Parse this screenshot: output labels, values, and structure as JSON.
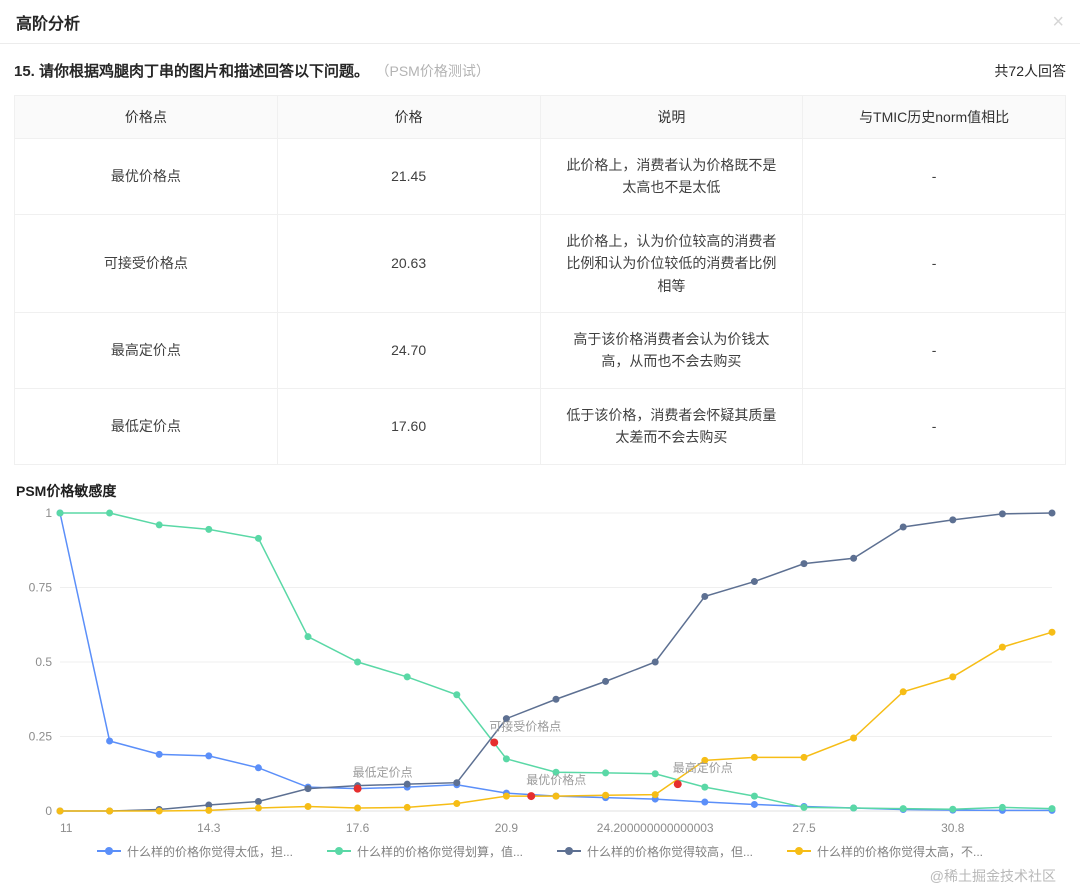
{
  "header": {
    "title": "高阶分析",
    "close_icon": "×"
  },
  "question": {
    "title": "15. 请你根据鸡腿肉丁串的图片和描述回答以下问题。",
    "subtitle": "（PSM价格测试）",
    "answer_count": "共72人回答"
  },
  "table": {
    "columns": [
      "价格点",
      "价格",
      "说明",
      "与TMIC历史norm值相比"
    ],
    "rows": [
      [
        "最优价格点",
        "21.45",
        "此价格上，消费者认为价格既不是太高也不是太低",
        "-"
      ],
      [
        "可接受价格点",
        "20.63",
        "此价格上，认为价位较高的消费者比例和认为价位较低的消费者比例相等",
        "-"
      ],
      [
        "最高定价点",
        "24.70",
        "高于该价格消费者会认为价钱太高，从而也不会去购买",
        "-"
      ],
      [
        "最低定价点",
        "17.60",
        "低于该价格，消费者会怀疑其质量太差而不会去购买",
        "-"
      ]
    ]
  },
  "chart": {
    "title": "PSM价格敏感度"
  },
  "chart_data": {
    "type": "line",
    "title": "PSM价格敏感度",
    "x": [
      11,
      12.1,
      13.2,
      14.3,
      15.4,
      16.5,
      17.6,
      18.7,
      19.8,
      20.9,
      22,
      23.1,
      24.2,
      25.3,
      26.4,
      27.5,
      28.6,
      29.7,
      30.8,
      31.9,
      33
    ],
    "x_tick_values": [
      11,
      14.3,
      17.6,
      20.9,
      24.2,
      27.5,
      30.8
    ],
    "x_tick_labels": [
      "11",
      "14.3",
      "17.6",
      "20.9",
      "24.200000000000003",
      "27.5",
      "30.8"
    ],
    "y_ticks": [
      0,
      0.25,
      0.5,
      0.75,
      1
    ],
    "ylim": [
      0,
      1
    ],
    "grid": "horizontal",
    "legend_position": "bottom",
    "series": [
      {
        "name": "什么样的价格你觉得太低，担...",
        "color": "#5B8FF9",
        "values": [
          1,
          0.235,
          0.19,
          0.185,
          0.145,
          0.08,
          0.075,
          0.08,
          0.088,
          0.06,
          0.05,
          0.045,
          0.04,
          0.03,
          0.022,
          0.015,
          0.01,
          0.005,
          0.003,
          0.002,
          0.002
        ]
      },
      {
        "name": "什么样的价格你觉得划算，值...",
        "color": "#5AD8A6",
        "values": [
          1,
          1,
          0.96,
          0.945,
          0.915,
          0.585,
          0.5,
          0.45,
          0.39,
          0.175,
          0.13,
          0.128,
          0.125,
          0.08,
          0.05,
          0.012,
          0.01,
          0.008,
          0.006,
          0.012,
          0.008
        ]
      },
      {
        "name": "什么样的价格你觉得较高，但...",
        "color": "#5D7092",
        "values": [
          0,
          0,
          0.005,
          0.02,
          0.032,
          0.075,
          0.085,
          0.09,
          0.095,
          0.31,
          0.375,
          0.435,
          0.5,
          0.72,
          0.77,
          0.83,
          0.848,
          0.953,
          0.977,
          0.997,
          1
        ]
      },
      {
        "name": "什么样的价格你觉得太高，不...",
        "color": "#F6BD16",
        "values": [
          0,
          0,
          0,
          0.002,
          0.01,
          0.015,
          0.01,
          0.012,
          0.025,
          0.05,
          0.05,
          0.053,
          0.055,
          0.17,
          0.18,
          0.18,
          0.245,
          0.4,
          0.45,
          0.55,
          0.6
        ]
      }
    ],
    "annotations": [
      {
        "label": "最低定价点",
        "x": 17.6,
        "y": 0.075,
        "color": "#e62e2e"
      },
      {
        "label": "可接受价格点",
        "x": 20.63,
        "y": 0.23,
        "color": "#e62e2e"
      },
      {
        "label": "最优价格点",
        "x": 21.45,
        "y": 0.05,
        "color": "#e62e2e"
      },
      {
        "label": "最高定价点",
        "x": 24.7,
        "y": 0.09,
        "color": "#e62e2e"
      }
    ]
  },
  "watermark": "@稀土掘金技术社区"
}
